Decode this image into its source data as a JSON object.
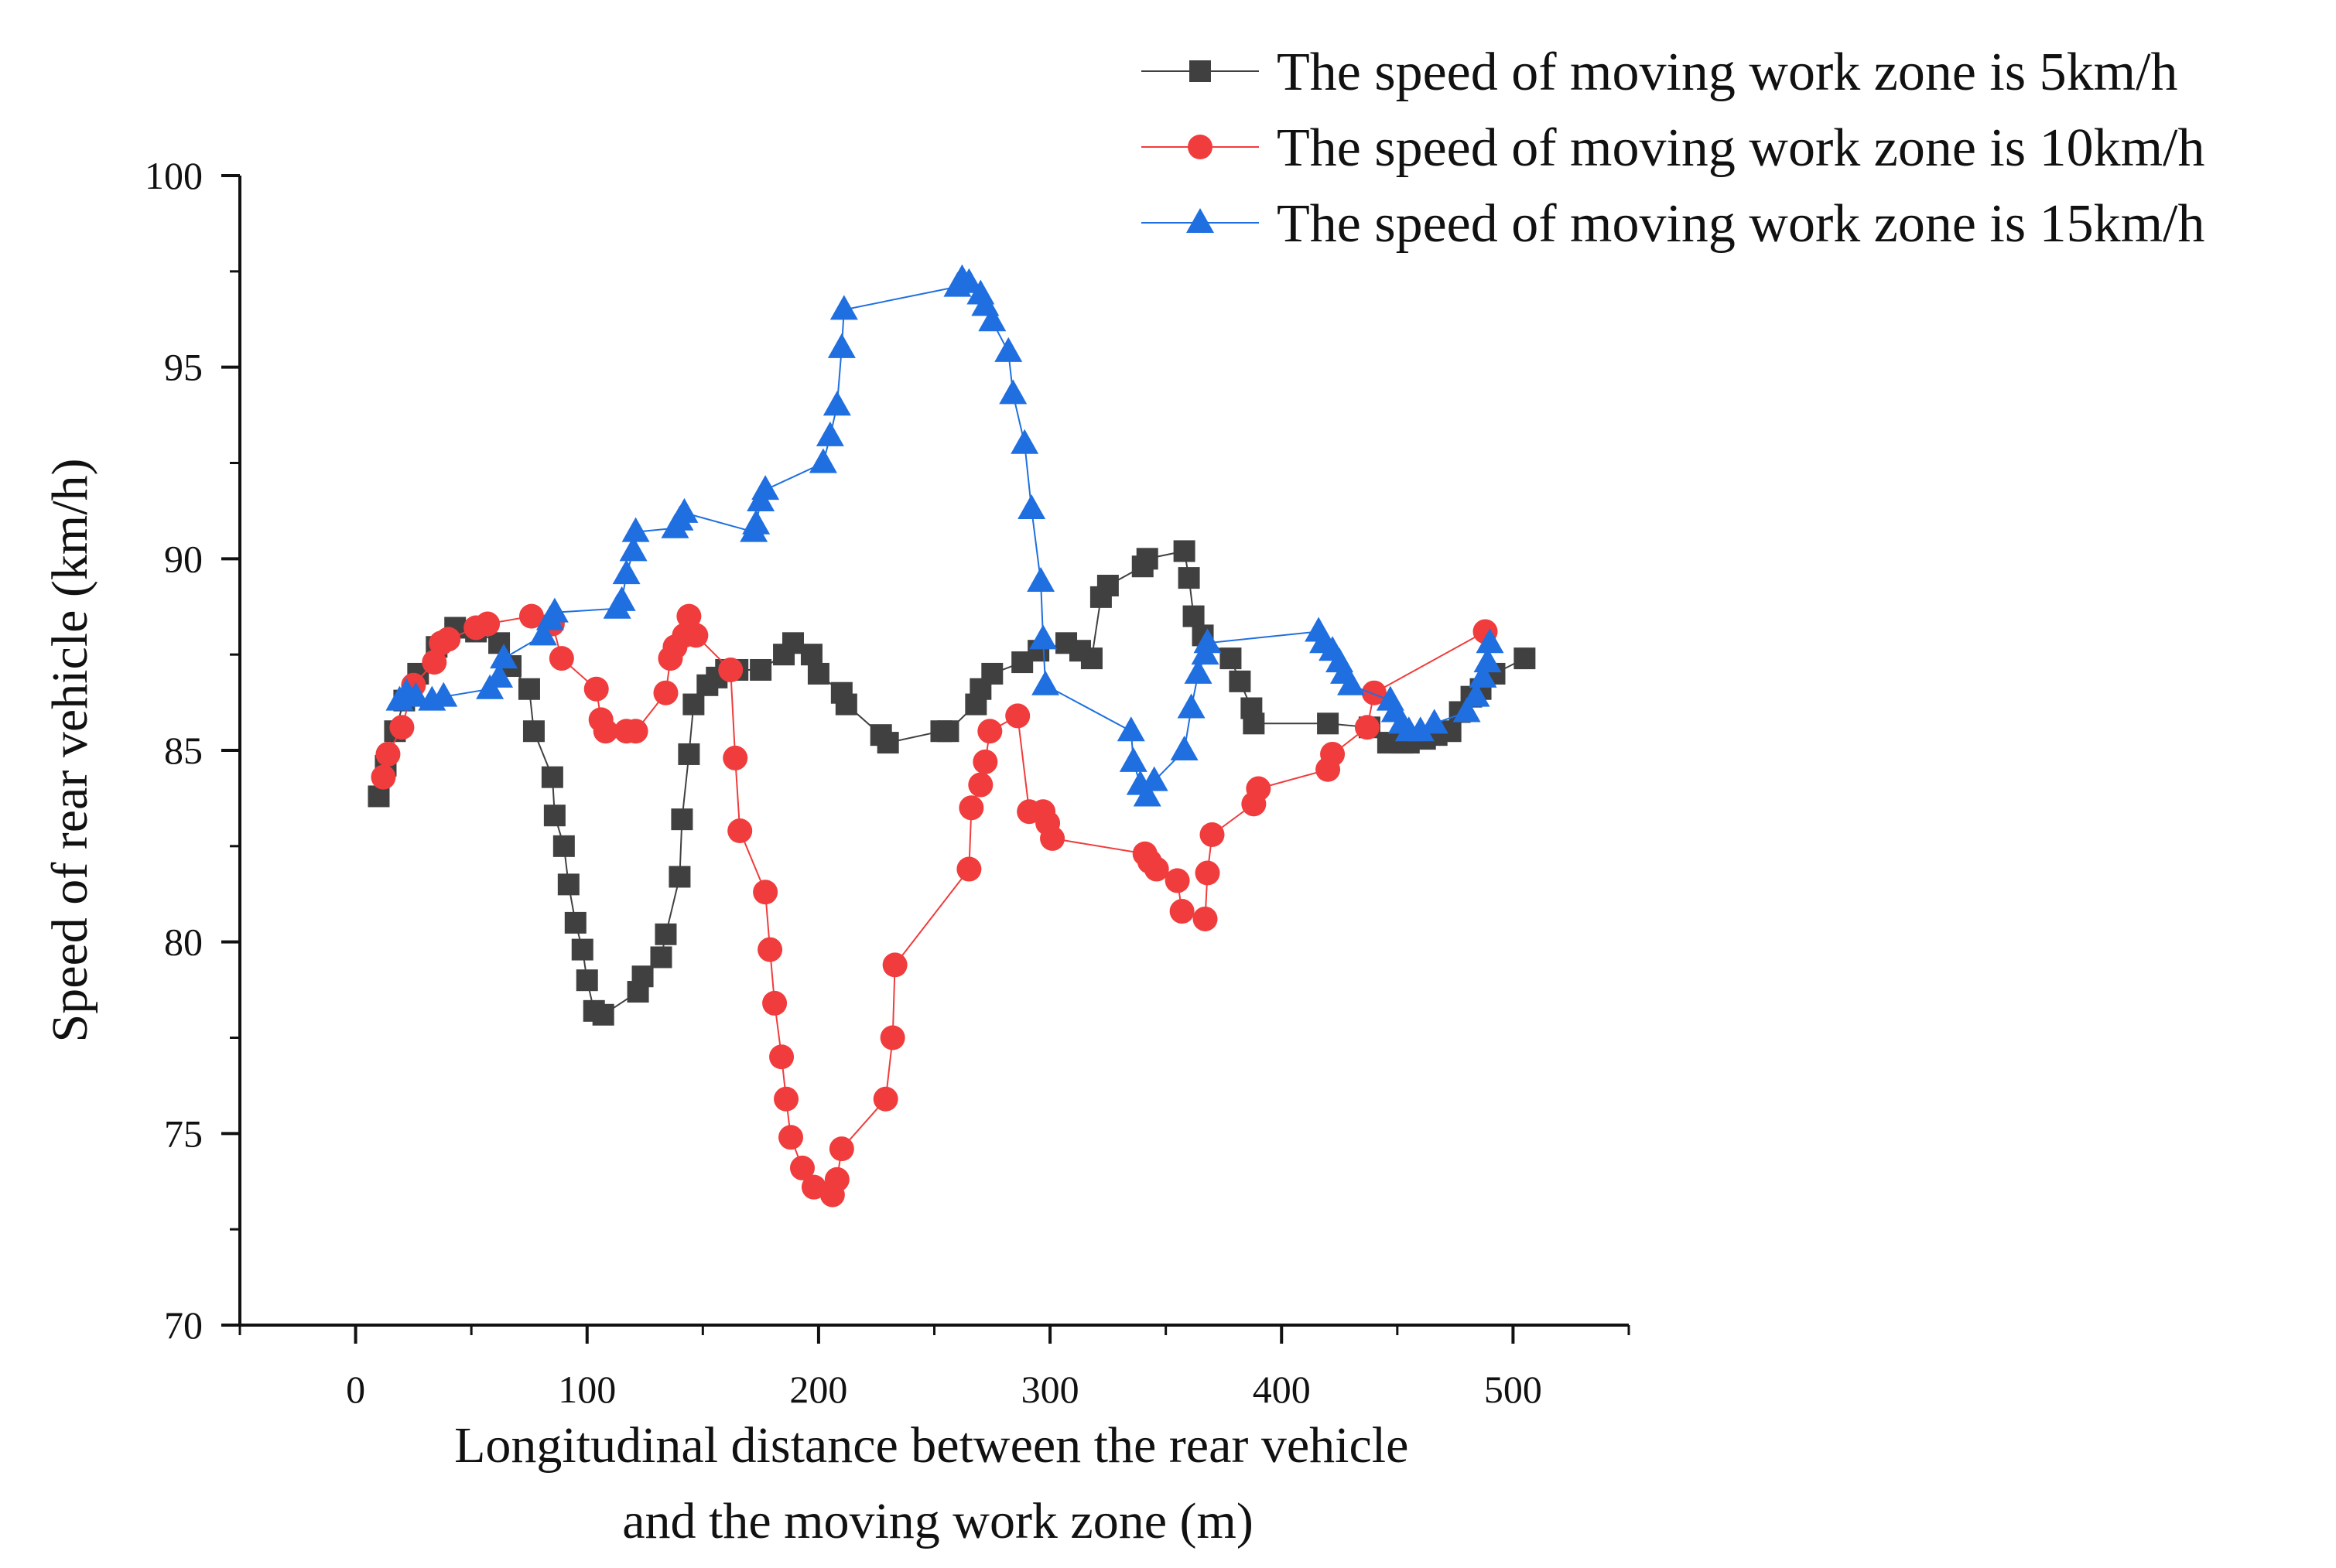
{
  "chart_data": {
    "type": "line",
    "title": "",
    "xlabel": "Longitudinal distance between the rear vehicle and the moving work zone (m)",
    "xlabel_lines": [
      "Longitudinal distance between the rear vehicle",
      "and the moving work zone (m)"
    ],
    "ylabel": "Speed of rear vehicle (km/h)",
    "xlim": [
      -50,
      550
    ],
    "ylim": [
      70,
      100
    ],
    "xticks": [
      0,
      100,
      200,
      300,
      400,
      500
    ],
    "yticks": [
      70,
      75,
      80,
      85,
      90,
      95,
      100
    ],
    "grid": false,
    "legend_position": "top-right",
    "series": [
      {
        "name": "The speed of moving work zone is 5km/h",
        "color": "#404040",
        "marker": "square",
        "x": [
          10,
          13,
          17,
          21,
          27,
          35,
          43,
          52,
          62,
          67,
          75,
          77,
          85,
          86,
          90,
          92,
          95,
          98,
          100,
          103,
          107,
          122,
          124,
          132,
          134,
          140,
          141,
          144,
          146,
          152,
          156,
          160,
          165,
          175,
          185,
          189,
          197,
          200,
          210,
          212,
          227,
          230,
          253,
          256,
          268,
          270,
          275,
          288,
          295,
          307,
          313,
          318,
          322,
          325,
          340,
          342,
          358,
          360,
          362,
          366,
          378,
          382,
          387,
          388,
          420,
          438,
          446,
          452,
          455,
          462,
          467,
          473,
          477,
          482,
          486,
          492,
          505
        ],
        "y": [
          83.8,
          84.6,
          85.5,
          86.3,
          87.0,
          87.7,
          88.2,
          88.1,
          87.8,
          87.2,
          86.6,
          85.5,
          84.3,
          83.3,
          82.5,
          81.5,
          80.5,
          79.8,
          79.0,
          78.2,
          78.1,
          78.7,
          79.1,
          79.6,
          80.2,
          81.7,
          83.2,
          84.9,
          86.2,
          86.7,
          86.9,
          87.1,
          87.1,
          87.1,
          87.5,
          87.8,
          87.5,
          87.0,
          86.5,
          86.2,
          85.4,
          85.2,
          85.5,
          85.5,
          86.2,
          86.6,
          87.0,
          87.3,
          87.6,
          87.8,
          87.6,
          87.4,
          89.0,
          89.3,
          89.8,
          90.0,
          90.2,
          89.5,
          88.5,
          88.0,
          87.4,
          86.8,
          86.1,
          85.7,
          85.7,
          85.6,
          85.2,
          85.2,
          85.2,
          85.3,
          85.4,
          85.5,
          86.0,
          86.4,
          86.6,
          87.0,
          87.4
        ]
      },
      {
        "name": "The speed of moving work zone is 10km/h",
        "color": "#f03c3c",
        "marker": "circle",
        "x": [
          12,
          14,
          20,
          25,
          34,
          37,
          40,
          52,
          57,
          76,
          85,
          89,
          104,
          106,
          108,
          117,
          121,
          134,
          136,
          138,
          142,
          144,
          147,
          162,
          164,
          166,
          177,
          179,
          181,
          184,
          186,
          188,
          193,
          198,
          206,
          208,
          210,
          229,
          232,
          233,
          265,
          266,
          270,
          272,
          274,
          286,
          291,
          297,
          299,
          301,
          341,
          343,
          346,
          355,
          357,
          367,
          368,
          370,
          388,
          390,
          420,
          422,
          437,
          440,
          488
        ],
        "y": [
          84.3,
          84.9,
          85.6,
          86.7,
          87.3,
          87.8,
          87.9,
          88.2,
          88.3,
          88.5,
          88.3,
          87.4,
          86.6,
          85.8,
          85.5,
          85.5,
          85.5,
          86.5,
          87.4,
          87.7,
          88.0,
          88.5,
          88.0,
          87.1,
          84.8,
          82.9,
          81.3,
          79.8,
          78.4,
          77.0,
          75.9,
          74.9,
          74.1,
          73.6,
          73.4,
          73.8,
          74.6,
          75.9,
          77.5,
          79.4,
          81.9,
          83.5,
          84.1,
          84.7,
          85.5,
          85.9,
          83.4,
          83.4,
          83.1,
          82.7,
          82.3,
          82.1,
          81.9,
          81.6,
          80.8,
          80.6,
          81.8,
          82.8,
          83.6,
          84.0,
          84.5,
          84.9,
          85.6,
          86.5,
          88.1
        ]
      },
      {
        "name": "The speed of moving work zone is 15km/h",
        "color": "#1f6fe0",
        "marker": "triangle",
        "x": [
          19,
          22,
          26,
          33,
          38,
          58,
          62,
          64,
          81,
          84,
          86,
          113,
          115,
          117,
          120,
          121,
          138,
          140,
          142,
          172,
          173,
          175,
          177,
          202,
          205,
          208,
          210,
          211,
          260,
          262,
          265,
          270,
          272,
          275,
          282,
          284,
          289,
          292,
          296,
          297,
          298,
          335,
          336,
          339,
          342,
          345,
          358,
          361,
          364,
          367,
          368,
          416,
          418,
          422,
          425,
          427,
          430,
          447,
          449,
          452,
          455,
          460,
          466,
          480,
          484,
          487,
          489,
          490
        ],
        "y": [
          86.3,
          86.5,
          86.4,
          86.3,
          86.4,
          86.6,
          86.9,
          87.4,
          88.0,
          88.4,
          88.6,
          88.7,
          88.9,
          89.6,
          90.2,
          90.7,
          90.8,
          91.0,
          91.2,
          90.7,
          90.9,
          91.5,
          91.8,
          92.5,
          93.2,
          94.0,
          95.5,
          96.5,
          97.1,
          97.3,
          97.2,
          96.9,
          96.6,
          96.2,
          95.4,
          94.3,
          93.0,
          91.3,
          89.4,
          87.9,
          86.7,
          85.5,
          84.7,
          84.1,
          83.8,
          84.2,
          85.0,
          86.1,
          87.0,
          87.5,
          87.8,
          88.1,
          87.8,
          87.6,
          87.3,
          87.0,
          86.7,
          86.3,
          86.0,
          85.7,
          85.5,
          85.5,
          85.7,
          86.0,
          86.4,
          86.9,
          87.3,
          87.8
        ]
      }
    ]
  }
}
